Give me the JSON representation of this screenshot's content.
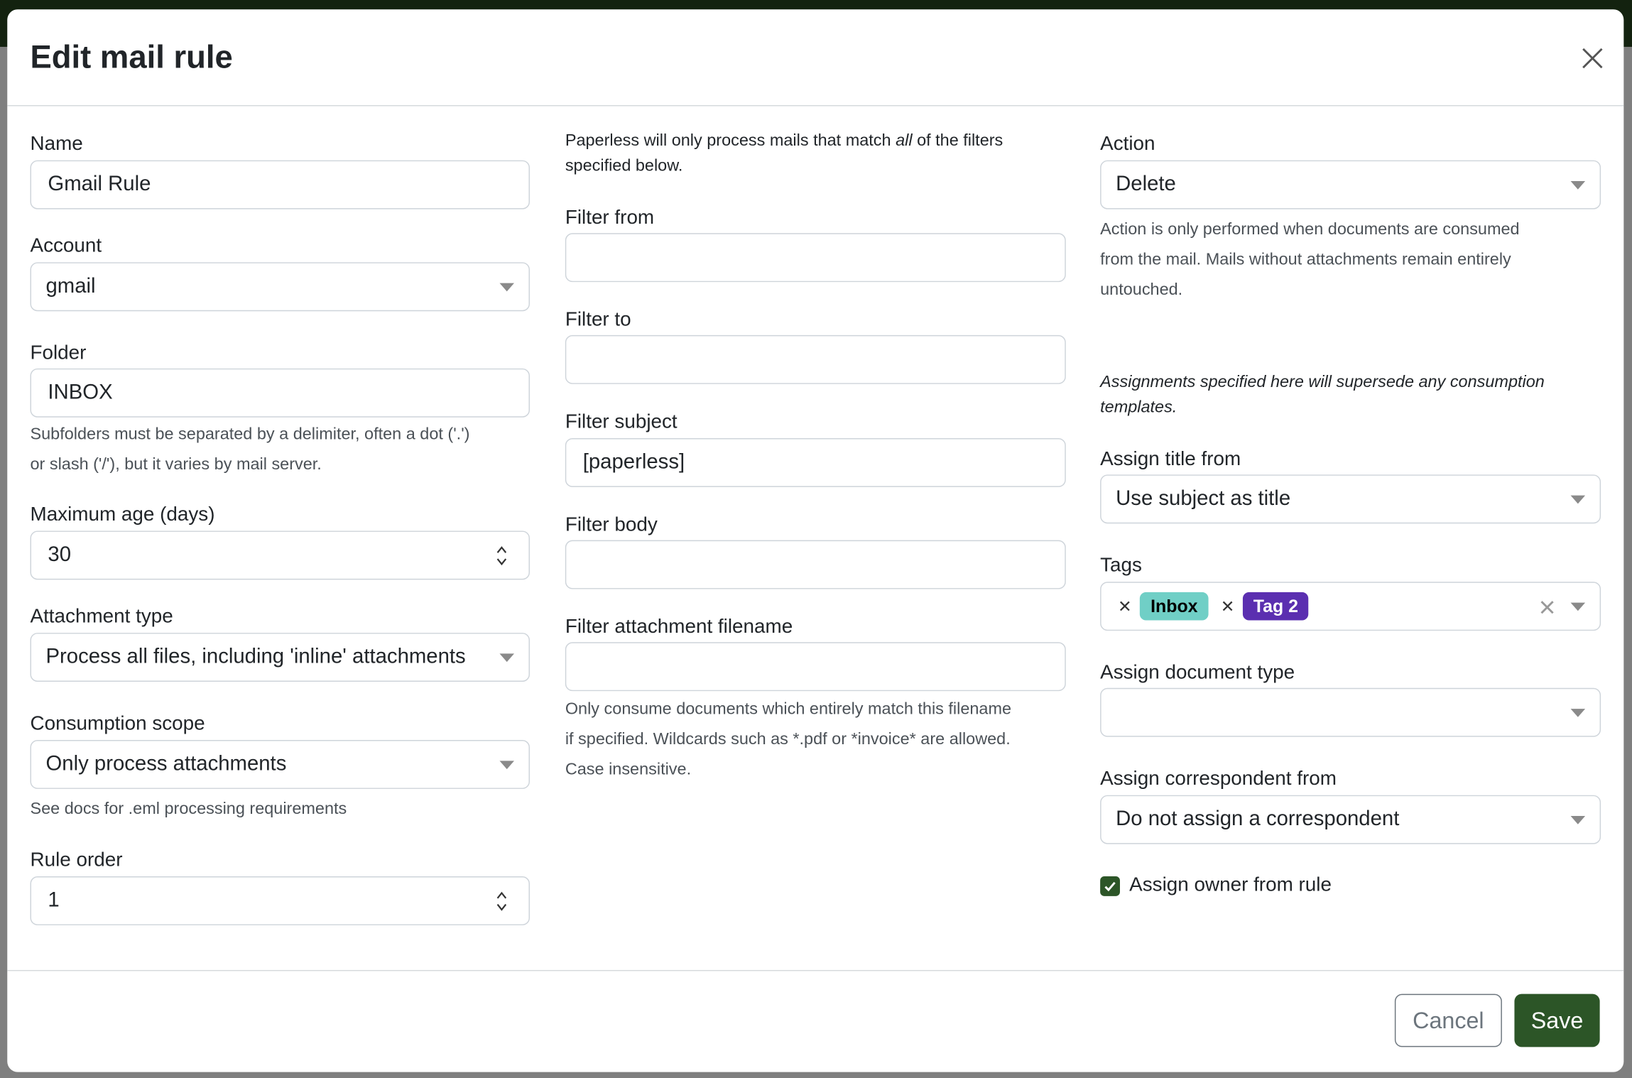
{
  "modal": {
    "title": "Edit mail rule",
    "cancel_label": "Cancel",
    "save_label": "Save"
  },
  "col1": {
    "name_label": "Name",
    "name_value": "Gmail Rule",
    "account_label": "Account",
    "account_value": "gmail",
    "folder_label": "Folder",
    "folder_value": "INBOX",
    "folder_help": [
      "Subfolders must be separated by a delimiter, often a dot ('.')",
      "or slash ('/'), but it varies by mail server."
    ],
    "max_age_label": "Maximum age (days)",
    "max_age_value": "30",
    "attachment_type_label": "Attachment type",
    "attachment_type_value": "Process all files, including 'inline' attachments",
    "scope_label": "Consumption scope",
    "scope_value": "Only process attachments",
    "scope_help": "See docs for .eml processing requirements",
    "rule_order_label": "Rule order",
    "rule_order_value": "1"
  },
  "col2": {
    "intro_pre": "Paperless will only process mails that match ",
    "intro_em": "all",
    "intro_post": " of the filters",
    "intro_line2": "specified below.",
    "filter_from_label": "Filter from",
    "filter_from_value": "",
    "filter_to_label": "Filter to",
    "filter_to_value": "",
    "filter_subject_label": "Filter subject",
    "filter_subject_value": "[paperless]",
    "filter_body_label": "Filter body",
    "filter_body_value": "",
    "filter_attachment_label": "Filter attachment filename",
    "filter_attachment_value": "",
    "filter_attachment_help": [
      "Only consume documents which entirely match this filename",
      "if specified. Wildcards such as *.pdf or *invoice* are allowed.",
      "Case insensitive."
    ]
  },
  "col3": {
    "action_label": "Action",
    "action_value": "Delete",
    "action_help": [
      "Action is only performed when documents are consumed",
      "from the mail. Mails without attachments remain entirely",
      "untouched."
    ],
    "assign_note": [
      "Assignments specified here will supersede any consumption",
      "templates."
    ],
    "title_from_label": "Assign title from",
    "title_from_value": "Use subject as title",
    "tags_label": "Tags",
    "tags": [
      {
        "name": "Inbox",
        "bg": "#70cfc6",
        "fg": "#000000"
      },
      {
        "name": "Tag 2",
        "bg": "#5b2fb0",
        "fg": "#ffffff"
      }
    ],
    "doc_type_label": "Assign document type",
    "doc_type_value": "",
    "correspondent_label": "Assign correspondent from",
    "correspondent_value": "Do not assign a correspondent",
    "owner_label": "Assign owner from rule",
    "owner_checked": true
  },
  "colors": {
    "accent": "#2c5527",
    "backdrop": "#7f7f7f"
  }
}
